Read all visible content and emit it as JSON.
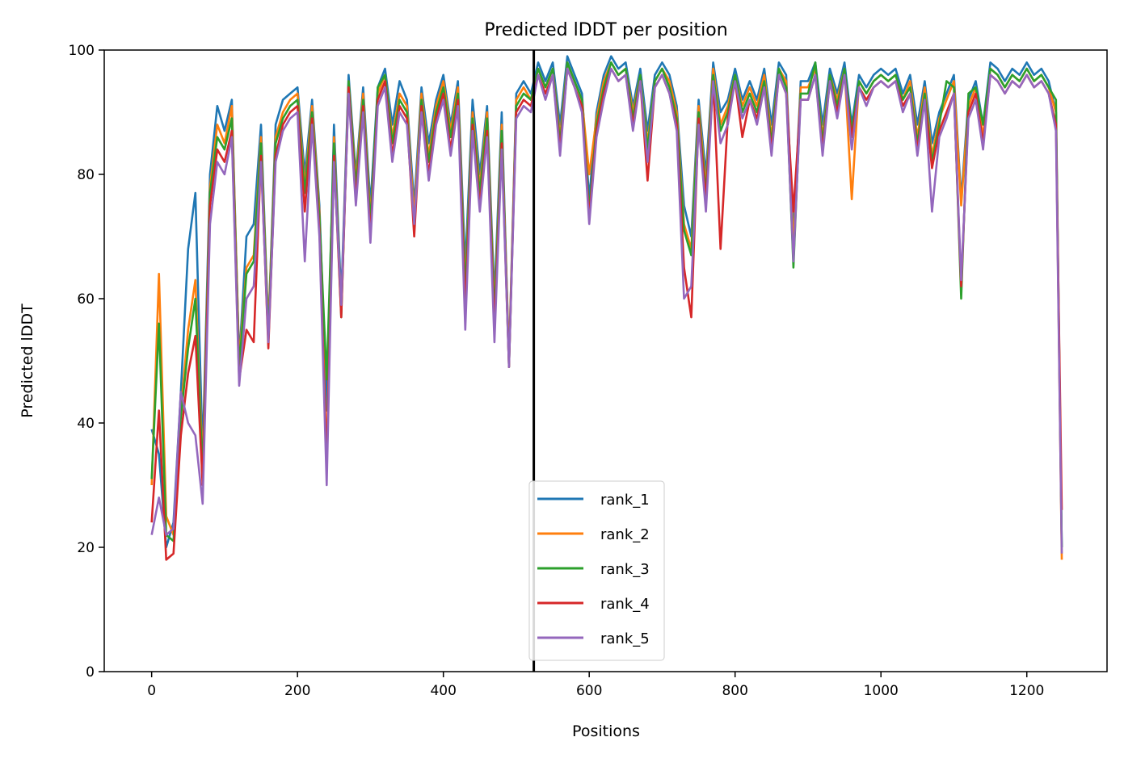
{
  "chart_data": {
    "type": "line",
    "title": "Predicted lDDT per position",
    "xlabel": "Positions",
    "ylabel": "Predicted lDDT",
    "xlim": [
      -65,
      1310
    ],
    "ylim": [
      0,
      100
    ],
    "xticks": [
      0,
      200,
      400,
      600,
      800,
      1000,
      1200
    ],
    "yticks": [
      0,
      20,
      40,
      60,
      80,
      100
    ],
    "grid": false,
    "legend_position": "bottom-center",
    "vertical_line_x": 524,
    "x": [
      0,
      10,
      20,
      30,
      40,
      50,
      60,
      70,
      80,
      90,
      100,
      110,
      120,
      130,
      140,
      150,
      160,
      170,
      180,
      190,
      200,
      210,
      220,
      230,
      240,
      250,
      260,
      270,
      280,
      290,
      300,
      310,
      320,
      330,
      340,
      350,
      360,
      370,
      380,
      390,
      400,
      410,
      420,
      430,
      440,
      450,
      460,
      470,
      480,
      490,
      500,
      510,
      520,
      530,
      540,
      550,
      560,
      570,
      580,
      590,
      600,
      610,
      620,
      630,
      640,
      650,
      660,
      670,
      680,
      690,
      700,
      710,
      720,
      730,
      740,
      750,
      760,
      770,
      780,
      790,
      800,
      810,
      820,
      830,
      840,
      850,
      860,
      870,
      880,
      890,
      900,
      910,
      920,
      930,
      940,
      950,
      960,
      970,
      980,
      990,
      1000,
      1010,
      1020,
      1030,
      1040,
      1050,
      1060,
      1070,
      1080,
      1090,
      1100,
      1110,
      1120,
      1130,
      1140,
      1150,
      1160,
      1170,
      1180,
      1190,
      1200,
      1210,
      1220,
      1230,
      1240,
      1248
    ],
    "series": [
      {
        "name": "rank_1",
        "color": "#1f77b4",
        "values": [
          39,
          35,
          20,
          24,
          45,
          68,
          77,
          35,
          80,
          91,
          87,
          92,
          50,
          70,
          72,
          88,
          55,
          88,
          92,
          93,
          94,
          80,
          92,
          75,
          42,
          88,
          60,
          96,
          80,
          94,
          75,
          94,
          97,
          88,
          95,
          92,
          75,
          94,
          85,
          92,
          96,
          88,
          95,
          65,
          92,
          80,
          91,
          60,
          90,
          50,
          93,
          95,
          93,
          98,
          95,
          98,
          88,
          99,
          96,
          93,
          76,
          90,
          96,
          99,
          97,
          98,
          91,
          97,
          87,
          96,
          98,
          96,
          91,
          75,
          70,
          92,
          80,
          98,
          90,
          92,
          97,
          92,
          95,
          92,
          97,
          88,
          98,
          96,
          70,
          95,
          95,
          98,
          88,
          97,
          93,
          98,
          88,
          96,
          94,
          96,
          97,
          96,
          97,
          93,
          96,
          88,
          95,
          85,
          90,
          93,
          96,
          76,
          92,
          95,
          88,
          98,
          97,
          95,
          97,
          96,
          98,
          96,
          97,
          95,
          90,
          20
        ]
      },
      {
        "name": "rank_2",
        "color": "#ff7f0e",
        "values": [
          30,
          64,
          25,
          22,
          42,
          55,
          63,
          33,
          78,
          88,
          85,
          91,
          50,
          65,
          67,
          86,
          55,
          86,
          90,
          92,
          93,
          78,
          91,
          74,
          34,
          86,
          58,
          95,
          79,
          93,
          73,
          93,
          96,
          86,
          93,
          91,
          73,
          93,
          83,
          91,
          95,
          87,
          94,
          62,
          90,
          78,
          90,
          58,
          88,
          50,
          92,
          94,
          92,
          97,
          94,
          97,
          86,
          98,
          95,
          92,
          80,
          89,
          95,
          98,
          96,
          97,
          90,
          96,
          85,
          95,
          97,
          95,
          90,
          72,
          68,
          91,
          78,
          97,
          88,
          91,
          96,
          91,
          94,
          91,
          96,
          86,
          97,
          95,
          68,
          94,
          94,
          97,
          86,
          96,
          92,
          97,
          76,
          95,
          93,
          95,
          96,
          95,
          96,
          92,
          95,
          86,
          94,
          83,
          89,
          92,
          95,
          75,
          91,
          94,
          86,
          97,
          96,
          94,
          96,
          95,
          97,
          95,
          96,
          94,
          90,
          18
        ]
      },
      {
        "name": "rank_3",
        "color": "#2ca02c",
        "values": [
          31,
          56,
          22,
          21,
          41,
          52,
          60,
          32,
          77,
          86,
          84,
          89,
          49,
          64,
          66,
          85,
          54,
          85,
          89,
          91,
          92,
          77,
          90,
          73,
          47,
          85,
          57,
          95,
          78,
          92,
          72,
          94,
          96,
          85,
          92,
          90,
          71,
          92,
          82,
          90,
          94,
          86,
          93,
          61,
          89,
          77,
          89,
          57,
          87,
          49,
          91,
          93,
          92,
          97,
          94,
          97,
          85,
          98,
          95,
          92,
          74,
          88,
          94,
          98,
          96,
          97,
          89,
          96,
          84,
          95,
          97,
          94,
          89,
          71,
          67,
          90,
          77,
          96,
          87,
          90,
          96,
          90,
          93,
          90,
          95,
          85,
          97,
          94,
          65,
          93,
          93,
          98,
          85,
          96,
          91,
          97,
          87,
          95,
          93,
          95,
          96,
          95,
          96,
          92,
          94,
          85,
          93,
          82,
          88,
          95,
          94,
          60,
          93,
          94,
          88,
          97,
          96,
          94,
          96,
          95,
          97,
          95,
          96,
          94,
          92,
          20
        ]
      },
      {
        "name": "rank_4",
        "color": "#d62728",
        "values": [
          24,
          42,
          18,
          19,
          38,
          48,
          54,
          30,
          75,
          84,
          82,
          87,
          47,
          55,
          53,
          83,
          52,
          83,
          88,
          90,
          91,
          74,
          89,
          71,
          33,
          83,
          57,
          94,
          76,
          91,
          70,
          92,
          95,
          83,
          91,
          89,
          70,
          91,
          80,
          89,
          93,
          84,
          92,
          58,
          88,
          75,
          87,
          55,
          85,
          49,
          90,
          92,
          91,
          96,
          93,
          96,
          84,
          97,
          94,
          91,
          73,
          87,
          93,
          97,
          95,
          96,
          88,
          95,
          79,
          94,
          96,
          93,
          88,
          65,
          57,
          89,
          76,
          95,
          68,
          89,
          95,
          86,
          92,
          89,
          94,
          84,
          96,
          93,
          74,
          92,
          92,
          96,
          84,
          95,
          90,
          96,
          86,
          94,
          92,
          94,
          95,
          94,
          95,
          91,
          93,
          84,
          92,
          81,
          87,
          90,
          93,
          62,
          90,
          93,
          85,
          96,
          95,
          93,
          95,
          94,
          96,
          94,
          95,
          93,
          88,
          26
        ]
      },
      {
        "name": "rank_5",
        "color": "#9467bd",
        "values": [
          22,
          28,
          22,
          23,
          45,
          40,
          38,
          27,
          72,
          82,
          80,
          86,
          46,
          60,
          62,
          82,
          53,
          82,
          87,
          89,
          90,
          66,
          88,
          70,
          30,
          82,
          59,
          93,
          75,
          90,
          69,
          91,
          94,
          82,
          90,
          88,
          72,
          90,
          79,
          88,
          92,
          83,
          91,
          55,
          87,
          74,
          86,
          53,
          84,
          49,
          89,
          91,
          90,
          96,
          92,
          96,
          83,
          97,
          94,
          90,
          72,
          86,
          92,
          97,
          95,
          96,
          87,
          95,
          82,
          94,
          96,
          93,
          87,
          60,
          62,
          88,
          74,
          95,
          85,
          88,
          95,
          89,
          92,
          88,
          94,
          83,
          96,
          93,
          66,
          92,
          92,
          96,
          83,
          95,
          89,
          96,
          84,
          94,
          91,
          94,
          95,
          94,
          95,
          90,
          93,
          83,
          92,
          74,
          86,
          89,
          93,
          63,
          89,
          92,
          84,
          96,
          95,
          93,
          95,
          94,
          96,
          94,
          95,
          93,
          87,
          19
        ]
      }
    ]
  }
}
